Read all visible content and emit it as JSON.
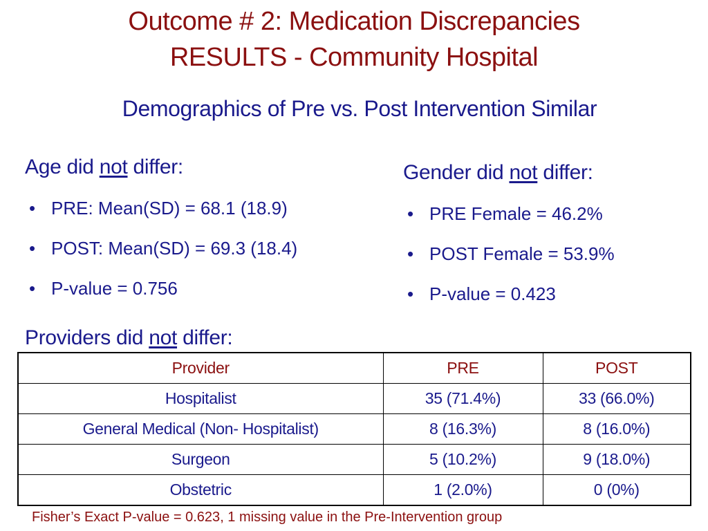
{
  "title": {
    "line1": "Outcome # 2: Medication Discrepancies",
    "line2": "RESULTS -  Community Hospital"
  },
  "subtitle": "Demographics of Pre vs. Post Intervention Similar",
  "age": {
    "heading_pre": "Age did ",
    "heading_underlined": "not",
    "heading_post": " differ:",
    "bullets": [
      "PRE: Mean(SD) = 68.1 (18.9)",
      "POST: Mean(SD) = 69.3 (18.4)",
      "P-value = 0.756"
    ]
  },
  "gender": {
    "heading_pre": "Gender did ",
    "heading_underlined": "not",
    "heading_post": " differ:",
    "bullets": [
      "PRE Female = 46.2%",
      "POST Female = 53.9%",
      "P-value = 0.423"
    ]
  },
  "providers": {
    "heading_pre": "Providers did ",
    "heading_underlined": "not",
    "heading_post": " differ:",
    "table": {
      "headers": [
        "Provider",
        "PRE",
        "POST"
      ],
      "rows": [
        [
          "Hospitalist",
          "35 (71.4%)",
          "33 (66.0%)"
        ],
        [
          "General Medical (Non- Hospitalist)",
          "8 (16.3%)",
          "8 (16.0%)"
        ],
        [
          "Surgeon",
          "5 (10.2%)",
          "9 (18.0%)"
        ],
        [
          "Obstetric",
          "1 (2.0%)",
          "0 (0%)"
        ]
      ]
    }
  },
  "footnote": {
    "bold_part": "Fisher’s Exact P-value = 0.623",
    "rest": ", 1 missing value in the Pre-Intervention group"
  },
  "bullet_glyph": "•",
  "colors": {
    "title": "#8b1010",
    "body": "#1a1a8c",
    "table_header": "#8b1010",
    "table_border": "#000000"
  }
}
